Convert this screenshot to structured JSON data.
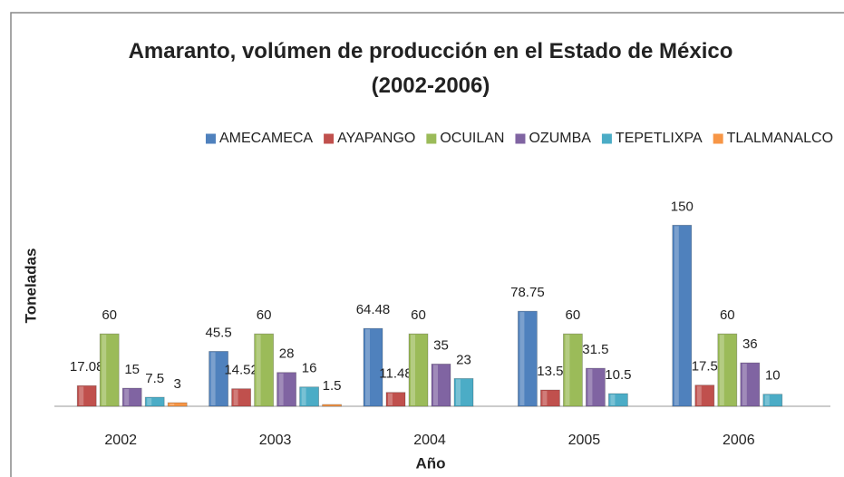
{
  "chart_data": {
    "type": "bar",
    "title": "Amaranto, volúmen de producción en el Estado de México (2002-2006)",
    "x_label": "Año",
    "y_label": "Toneladas",
    "categories": [
      "2002",
      "2003",
      "2004",
      "2005",
      "2006"
    ],
    "series": [
      {
        "name": "AMECAMECA",
        "color": "#4f81bd",
        "values": [
          null,
          45.5,
          64.48,
          78.75,
          150
        ]
      },
      {
        "name": "AYAPANGO",
        "color": "#c0504d",
        "values": [
          17.08,
          14.52,
          11.48,
          13.5,
          17.5
        ]
      },
      {
        "name": "OCUILAN",
        "color": "#9bbb59",
        "values": [
          60,
          60,
          60,
          60,
          60
        ]
      },
      {
        "name": "OZUMBA",
        "color": "#8064a2",
        "values": [
          15,
          28,
          35,
          31.5,
          36
        ]
      },
      {
        "name": "TEPETLIXPA",
        "color": "#4bacc6",
        "values": [
          7.5,
          16,
          23,
          10.5,
          10
        ]
      },
      {
        "name": "TLALMANALCO",
        "color": "#f79646",
        "values": [
          3,
          1.5,
          null,
          null,
          null
        ]
      }
    ],
    "ylim": [
      0,
      160
    ],
    "legend": "top"
  }
}
